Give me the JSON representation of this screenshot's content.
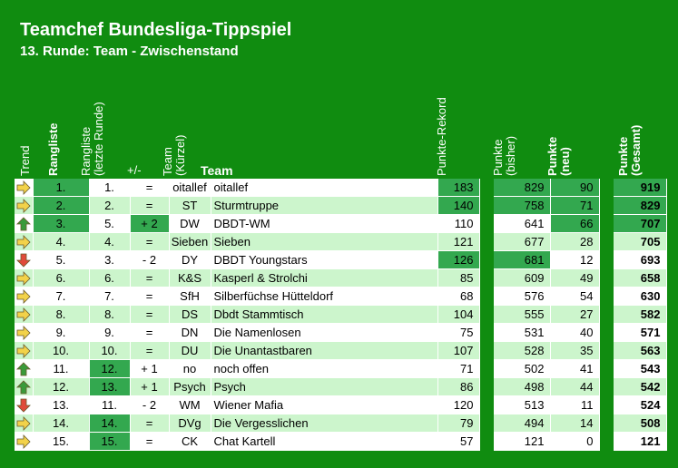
{
  "title": "Teamchef Bundesliga-Tippspiel",
  "subtitle": "13. Runde: Team - Zwischenstand",
  "headers": {
    "trend": "Trend",
    "rangliste": "Rangliste",
    "rangliste_letzte": "Rangliste (letzte Runde)",
    "plusminus": "+/-",
    "team_kurzel": "Team (Kürzel)",
    "team": "Team",
    "punkte_rekord": "Punkte-Rekord",
    "punkte_bisher": "Punkte (bisher)",
    "punkte_neu": "Punkte (neu)",
    "punkte_gesamt": "Punkte (Gesamt)"
  },
  "colors": {
    "background": "#108c10",
    "light_row": "#ffffff",
    "alt_row": "#ccf5cc",
    "highlight": "#33a84f",
    "arrow_same": "#f2d24a",
    "arrow_up": "#3a9a3a",
    "arrow_down": "#e04a3a"
  },
  "rows": [
    {
      "trend": "same",
      "rank": "1.",
      "last": "1.",
      "pm": "=",
      "kurz": "oitallef",
      "team": "oitallef",
      "rekord": "183",
      "bisher": "829",
      "neu": "90",
      "gesamt": "919"
    },
    {
      "trend": "same",
      "rank": "2.",
      "last": "2.",
      "pm": "=",
      "kurz": "ST",
      "team": "Sturmtruppe",
      "rekord": "140",
      "bisher": "758",
      "neu": "71",
      "gesamt": "829"
    },
    {
      "trend": "up",
      "rank": "3.",
      "last": "5.",
      "pm": "+ 2",
      "kurz": "DW",
      "team": "DBDT-WM",
      "rekord": "110",
      "bisher": "641",
      "neu": "66",
      "gesamt": "707"
    },
    {
      "trend": "same",
      "rank": "4.",
      "last": "4.",
      "pm": "=",
      "kurz": "Sieben",
      "team": "Sieben",
      "rekord": "121",
      "bisher": "677",
      "neu": "28",
      "gesamt": "705"
    },
    {
      "trend": "down",
      "rank": "5.",
      "last": "3.",
      "pm": "- 2",
      "kurz": "DY",
      "team": "DBDT Youngstars",
      "rekord": "126",
      "bisher": "681",
      "neu": "12",
      "gesamt": "693"
    },
    {
      "trend": "same",
      "rank": "6.",
      "last": "6.",
      "pm": "=",
      "kurz": "K&S",
      "team": "Kasperl & Strolchi",
      "rekord": "85",
      "bisher": "609",
      "neu": "49",
      "gesamt": "658"
    },
    {
      "trend": "same",
      "rank": "7.",
      "last": "7.",
      "pm": "=",
      "kurz": "SfH",
      "team": "Silberfüchse Hütteldorf",
      "rekord": "68",
      "bisher": "576",
      "neu": "54",
      "gesamt": "630"
    },
    {
      "trend": "same",
      "rank": "8.",
      "last": "8.",
      "pm": "=",
      "kurz": "DS",
      "team": "Dbdt Stammtisch",
      "rekord": "104",
      "bisher": "555",
      "neu": "27",
      "gesamt": "582"
    },
    {
      "trend": "same",
      "rank": "9.",
      "last": "9.",
      "pm": "=",
      "kurz": "DN",
      "team": "Die Namenlosen",
      "rekord": "75",
      "bisher": "531",
      "neu": "40",
      "gesamt": "571"
    },
    {
      "trend": "same",
      "rank": "10.",
      "last": "10.",
      "pm": "=",
      "kurz": "DU",
      "team": "Die Unantastbaren",
      "rekord": "107",
      "bisher": "528",
      "neu": "35",
      "gesamt": "563"
    },
    {
      "trend": "up",
      "rank": "11.",
      "last": "12.",
      "pm": "+ 1",
      "kurz": "no",
      "team": "noch offen",
      "rekord": "71",
      "bisher": "502",
      "neu": "41",
      "gesamt": "543"
    },
    {
      "trend": "up",
      "rank": "12.",
      "last": "13.",
      "pm": "+ 1",
      "kurz": "Psych",
      "team": "Psych",
      "rekord": "86",
      "bisher": "498",
      "neu": "44",
      "gesamt": "542"
    },
    {
      "trend": "down",
      "rank": "13.",
      "last": "11.",
      "pm": "- 2",
      "kurz": "WM",
      "team": "Wiener Mafia",
      "rekord": "120",
      "bisher": "513",
      "neu": "11",
      "gesamt": "524"
    },
    {
      "trend": "same",
      "rank": "14.",
      "last": "14.",
      "pm": "=",
      "kurz": "DVg",
      "team": "Die Vergesslichen",
      "rekord": "79",
      "bisher": "494",
      "neu": "14",
      "gesamt": "508"
    },
    {
      "trend": "same",
      "rank": "15.",
      "last": "15.",
      "pm": "=",
      "kurz": "CK",
      "team": "Chat Kartell",
      "rekord": "57",
      "bisher": "121",
      "neu": "0",
      "gesamt": "121"
    }
  ]
}
